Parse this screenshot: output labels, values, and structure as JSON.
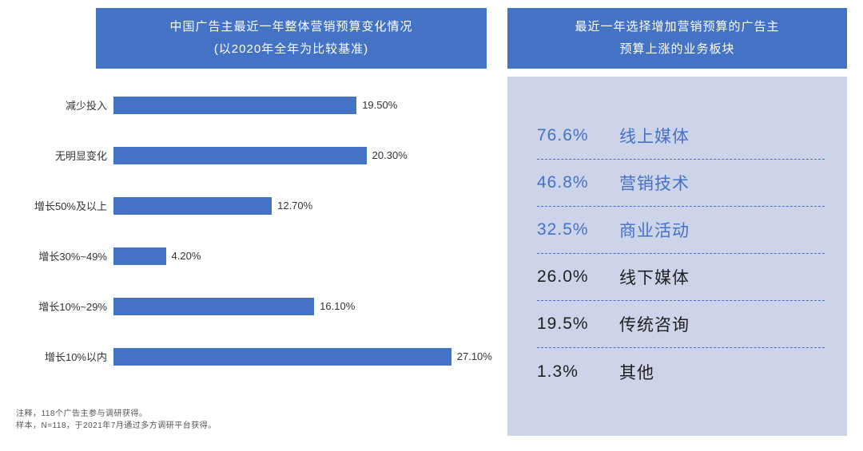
{
  "left_panel": {
    "title_line1": "中国广告主最近一年整体营销预算变化情况",
    "title_line2": "(以2020年全年为比较基准)",
    "notes": [
      "注释，118个广告主参与调研获得。",
      "样本，N=118，于2021年7月通过多方调研平台获得。"
    ]
  },
  "right_panel": {
    "title_line1": "最近一年选择增加营销预算的广告主",
    "title_line2": "预算上涨的业务板块",
    "items": [
      {
        "value": "76.6%",
        "label": "线上媒体",
        "highlight": true
      },
      {
        "value": "46.8%",
        "label": "营销技术",
        "highlight": true
      },
      {
        "value": "32.5%",
        "label": "商业活动",
        "highlight": true
      },
      {
        "value": "26.0%",
        "label": "线下媒体",
        "highlight": false
      },
      {
        "value": "19.5%",
        "label": "传统咨询",
        "highlight": false
      },
      {
        "value": "1.3%",
        "label": "其他",
        "highlight": false
      }
    ]
  },
  "chart_data": [
    {
      "type": "bar",
      "orientation": "horizontal",
      "title": "中国广告主最近一年整体营销预算变化情况 (以2020年全年为比较基准)",
      "categories": [
        "减少投入",
        "无明显变化",
        "增长50%及以上",
        "增长30%~49%",
        "增长10%~29%",
        "增长10%以内"
      ],
      "values": [
        19.5,
        20.3,
        12.7,
        4.2,
        16.1,
        27.1
      ],
      "value_labels": [
        "19.50%",
        "20.30%",
        "12.70%",
        "4.20%",
        "16.10%",
        "27.10%"
      ],
      "xlim": [
        0,
        30
      ],
      "grid": false,
      "legend": false,
      "bar_color": "#4472C4"
    },
    {
      "type": "table",
      "title": "最近一年选择增加营销预算的广告主预算上涨的业务板块",
      "categories": [
        "线上媒体",
        "营销技术",
        "商业活动",
        "线下媒体",
        "传统咨询",
        "其他"
      ],
      "values": [
        76.6,
        46.8,
        32.5,
        26.0,
        19.5,
        1.3
      ]
    }
  ],
  "colors": {
    "header_bg": "#4472C4",
    "header_text": "#FFFFFF",
    "panel_bg": "#CDD4EA",
    "bar": "#4472C4",
    "highlight_text": "#4472C4",
    "normal_text": "#1F1F1F",
    "divider": "#4472C4"
  }
}
